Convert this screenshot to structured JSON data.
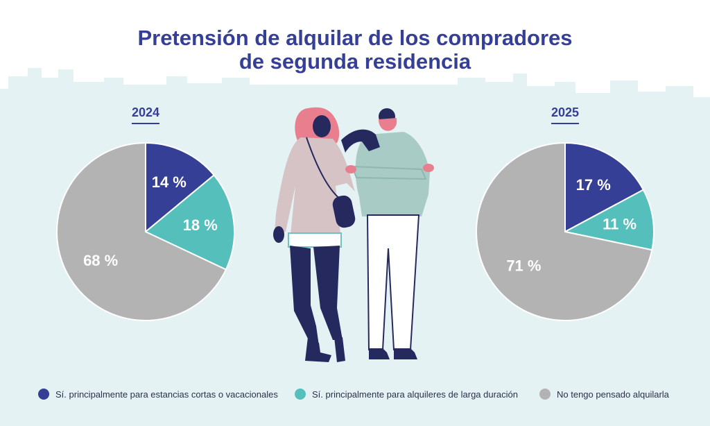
{
  "title_line1": "Pretensión de alquilar de los compradores",
  "title_line2": "de segunda residencia",
  "colors": {
    "short_term": "#353f96",
    "long_term": "#55bfbc",
    "no": "#b3b3b3",
    "background": "#e5f2f4",
    "title": "#353f96"
  },
  "chart_data": [
    {
      "type": "pie",
      "title": "2024",
      "slices": [
        {
          "key": "short_term",
          "label": "Sí. principalmente para estancias cortas o vacacionales",
          "value": 14,
          "display": "14 %"
        },
        {
          "key": "long_term",
          "label": "Sí. principalmente para alquileres de larga duración",
          "value": 18,
          "display": "18 %"
        },
        {
          "key": "no",
          "label": "No tengo pensado alquilarla",
          "value": 68,
          "display": "68 %"
        }
      ]
    },
    {
      "type": "pie",
      "title": "2025",
      "slices": [
        {
          "key": "short_term",
          "label": "Sí. principalmente para estancias cortas o vacacionales",
          "value": 17,
          "display": "17 %"
        },
        {
          "key": "long_term",
          "label": "Sí. principalmente para alquileres de larga duración",
          "value": 11,
          "display": "11 %"
        },
        {
          "key": "no",
          "label": "No tengo pensado alquilarla",
          "value": 71,
          "display": "71 %"
        }
      ]
    }
  ],
  "legend": [
    {
      "key": "short_term",
      "label": "Sí. principalmente para estancias cortas o vacacionales"
    },
    {
      "key": "long_term",
      "label": "Sí. principalmente para alquileres de larga duración"
    },
    {
      "key": "no",
      "label": "No tengo pensado alquilarla"
    }
  ],
  "illustration": "couple-illustration"
}
